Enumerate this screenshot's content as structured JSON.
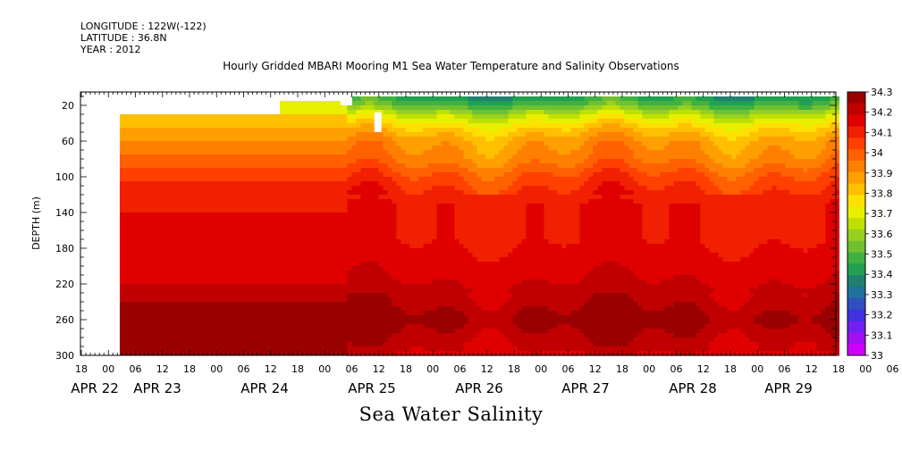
{
  "header": {
    "longitude": "LONGITUDE : 122W(-122)",
    "latitude": "LATITUDE : 36.8N",
    "year": "YEAR : 2012"
  },
  "chart_data": {
    "type": "heatmap",
    "title": "Hourly Gridded MBARI Mooring M1 Sea Water Temperature and Salinity Observations",
    "xlabel": "",
    "ylabel": "DEPTH (m)",
    "colorbar_label": "Sea Water Salinity",
    "x_hours": [
      "18",
      "00",
      "06",
      "12",
      "18",
      "00",
      "06",
      "12",
      "18",
      "00",
      "06",
      "12",
      "18",
      "00",
      "06",
      "12",
      "18",
      "00",
      "06",
      "12",
      "18",
      "00",
      "06",
      "12",
      "18",
      "00",
      "06",
      "12",
      "18",
      "00",
      "06",
      "12",
      "18"
    ],
    "x_dates": [
      "APR 22",
      "APR 23",
      "APR 24",
      "APR 25",
      "APR 26",
      "APR 27",
      "APR 28",
      "APR 29"
    ],
    "y_ticks": [
      "20",
      "60",
      "100",
      "140",
      "180",
      "220",
      "260",
      "300"
    ],
    "ylim": [
      300,
      5
    ],
    "colorbar_ticks": [
      "34.3",
      "34.2",
      "34.1",
      "34",
      "33.9",
      "33.8",
      "33.7",
      "33.6",
      "33.5",
      "33.4",
      "33.3",
      "33.2",
      "33.1",
      "33"
    ],
    "colorbar_colors": [
      "#9b0000",
      "#c00000",
      "#e00000",
      "#f02000",
      "#ff4000",
      "#ff6000",
      "#ff8000",
      "#ffa000",
      "#ffc000",
      "#ffe000",
      "#e8f000",
      "#c0e000",
      "#98d020",
      "#70c030",
      "#40b040",
      "#20a050",
      "#208070",
      "#2070a0",
      "#3050c0",
      "#4030e0",
      "#7020f0",
      "#a010f0",
      "#d000ff"
    ],
    "layers_before_apr25": [
      {
        "depth_top": 30,
        "depth_bottom": 45,
        "salinity": 33.85
      },
      {
        "depth_top": 45,
        "depth_bottom": 60,
        "salinity": 33.9
      },
      {
        "depth_top": 60,
        "depth_bottom": 75,
        "salinity": 33.95
      },
      {
        "depth_top": 75,
        "depth_bottom": 90,
        "salinity": 34.0
      },
      {
        "depth_top": 90,
        "depth_bottom": 105,
        "salinity": 34.05
      },
      {
        "depth_top": 105,
        "depth_bottom": 120,
        "salinity": 34.1
      },
      {
        "depth_top": 120,
        "depth_bottom": 140,
        "salinity": 34.15
      },
      {
        "depth_top": 140,
        "depth_bottom": 220,
        "salinity": 34.2
      },
      {
        "depth_top": 220,
        "depth_bottom": 240,
        "salinity": 34.25
      },
      {
        "depth_top": 240,
        "depth_bottom": 300,
        "salinity": 34.3
      }
    ],
    "profile_after_apr25": [
      {
        "depth": 10,
        "salinity": 33.4
      },
      {
        "depth": 20,
        "salinity": 33.5
      },
      {
        "depth": 30,
        "salinity": 33.65
      },
      {
        "depth": 45,
        "salinity": 33.8
      },
      {
        "depth": 60,
        "salinity": 33.9
      },
      {
        "depth": 80,
        "salinity": 33.95
      },
      {
        "depth": 100,
        "salinity": 34.05
      },
      {
        "depth": 130,
        "salinity": 34.15
      },
      {
        "depth": 170,
        "salinity": 34.15
      },
      {
        "depth": 210,
        "salinity": 34.2
      },
      {
        "depth": 240,
        "salinity": 34.25
      },
      {
        "depth": 260,
        "salinity": 34.3
      },
      {
        "depth": 280,
        "salinity": 34.25
      },
      {
        "depth": 300,
        "salinity": 34.2
      }
    ]
  }
}
